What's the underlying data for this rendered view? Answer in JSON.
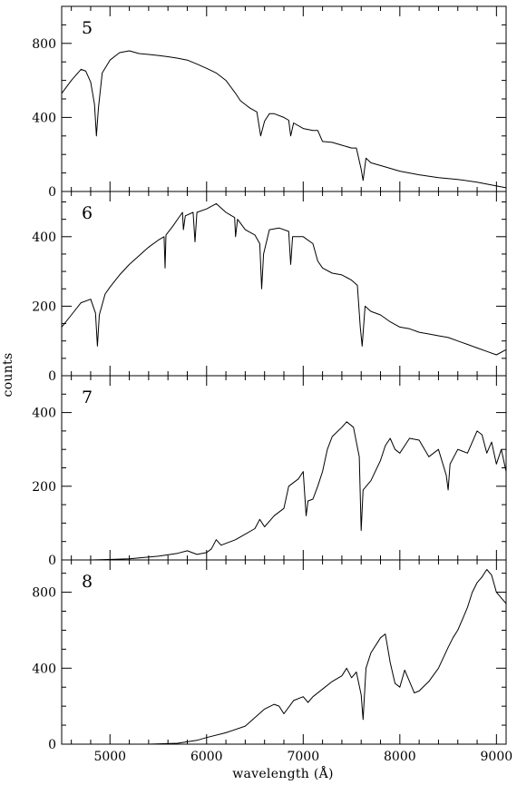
{
  "chart_data": {
    "type": "line",
    "xlabel": "wavelength (Å)",
    "ylabel": "counts",
    "xlim": [
      4500,
      9100
    ],
    "x_ticks": [
      5000,
      6000,
      7000,
      8000,
      9000
    ],
    "x_tick_labels": [
      "5000",
      "6000",
      "7000",
      "8000",
      "9000"
    ],
    "grid": false,
    "panels": [
      {
        "label": "5",
        "ylim": [
          0,
          1000
        ],
        "y_ticks": [
          0,
          400,
          800
        ],
        "y_tick_labels": [
          "0",
          "400",
          "800"
        ],
        "points": [
          [
            4500,
            530
          ],
          [
            4600,
            600
          ],
          [
            4700,
            660
          ],
          [
            4750,
            650
          ],
          [
            4800,
            590
          ],
          [
            4840,
            470
          ],
          [
            4860,
            300
          ],
          [
            4880,
            450
          ],
          [
            4920,
            640
          ],
          [
            5000,
            710
          ],
          [
            5100,
            750
          ],
          [
            5200,
            760
          ],
          [
            5300,
            745
          ],
          [
            5400,
            740
          ],
          [
            5500,
            735
          ],
          [
            5600,
            728
          ],
          [
            5700,
            720
          ],
          [
            5800,
            710
          ],
          [
            5900,
            688
          ],
          [
            6000,
            665
          ],
          [
            6100,
            640
          ],
          [
            6200,
            600
          ],
          [
            6300,
            530
          ],
          [
            6350,
            490
          ],
          [
            6400,
            470
          ],
          [
            6450,
            450
          ],
          [
            6520,
            430
          ],
          [
            6560,
            300
          ],
          [
            6600,
            380
          ],
          [
            6650,
            420
          ],
          [
            6700,
            420
          ],
          [
            6800,
            400
          ],
          [
            6850,
            385
          ],
          [
            6870,
            300
          ],
          [
            6900,
            370
          ],
          [
            7000,
            340
          ],
          [
            7100,
            330
          ],
          [
            7150,
            330
          ],
          [
            7200,
            270
          ],
          [
            7300,
            265
          ],
          [
            7400,
            250
          ],
          [
            7500,
            235
          ],
          [
            7550,
            235
          ],
          [
            7600,
            120
          ],
          [
            7620,
            60
          ],
          [
            7650,
            180
          ],
          [
            7700,
            155
          ],
          [
            7800,
            140
          ],
          [
            7900,
            125
          ],
          [
            8000,
            110
          ],
          [
            8200,
            90
          ],
          [
            8400,
            75
          ],
          [
            8600,
            65
          ],
          [
            8800,
            50
          ],
          [
            9000,
            30
          ],
          [
            9100,
            20
          ]
        ]
      },
      {
        "label": "6",
        "ylim": [
          0,
          530
        ],
        "y_ticks": [
          0,
          200,
          400
        ],
        "y_tick_labels": [
          "0",
          "200",
          "400"
        ],
        "points": [
          [
            4500,
            140
          ],
          [
            4600,
            175
          ],
          [
            4700,
            210
          ],
          [
            4800,
            220
          ],
          [
            4850,
            180
          ],
          [
            4870,
            85
          ],
          [
            4890,
            175
          ],
          [
            4950,
            235
          ],
          [
            5000,
            255
          ],
          [
            5100,
            290
          ],
          [
            5200,
            320
          ],
          [
            5300,
            345
          ],
          [
            5400,
            370
          ],
          [
            5500,
            390
          ],
          [
            5560,
            400
          ],
          [
            5570,
            310
          ],
          [
            5580,
            405
          ],
          [
            5650,
            430
          ],
          [
            5700,
            450
          ],
          [
            5750,
            470
          ],
          [
            5760,
            420
          ],
          [
            5780,
            460
          ],
          [
            5860,
            470
          ],
          [
            5880,
            385
          ],
          [
            5900,
            470
          ],
          [
            6000,
            480
          ],
          [
            6100,
            495
          ],
          [
            6200,
            470
          ],
          [
            6290,
            455
          ],
          [
            6300,
            400
          ],
          [
            6320,
            450
          ],
          [
            6400,
            420
          ],
          [
            6500,
            405
          ],
          [
            6550,
            380
          ],
          [
            6570,
            250
          ],
          [
            6590,
            350
          ],
          [
            6650,
            420
          ],
          [
            6750,
            425
          ],
          [
            6850,
            415
          ],
          [
            6870,
            320
          ],
          [
            6890,
            400
          ],
          [
            7000,
            400
          ],
          [
            7100,
            380
          ],
          [
            7150,
            330
          ],
          [
            7200,
            310
          ],
          [
            7300,
            295
          ],
          [
            7400,
            290
          ],
          [
            7500,
            275
          ],
          [
            7560,
            260
          ],
          [
            7590,
            140
          ],
          [
            7610,
            85
          ],
          [
            7640,
            200
          ],
          [
            7700,
            185
          ],
          [
            7800,
            175
          ],
          [
            7900,
            155
          ],
          [
            8000,
            140
          ],
          [
            8100,
            135
          ],
          [
            8200,
            125
          ],
          [
            8300,
            120
          ],
          [
            8400,
            115
          ],
          [
            8500,
            110
          ],
          [
            8600,
            100
          ],
          [
            8700,
            90
          ],
          [
            8800,
            80
          ],
          [
            8900,
            70
          ],
          [
            9000,
            60
          ],
          [
            9100,
            75
          ]
        ]
      },
      {
        "label": "7",
        "ylim": [
          0,
          500
        ],
        "y_ticks": [
          0,
          200,
          400
        ],
        "y_tick_labels": [
          "0",
          "200",
          "400"
        ],
        "points": [
          [
            4800,
            0
          ],
          [
            5200,
            3
          ],
          [
            5500,
            10
          ],
          [
            5700,
            18
          ],
          [
            5800,
            25
          ],
          [
            5900,
            15
          ],
          [
            6000,
            20
          ],
          [
            6050,
            30
          ],
          [
            6100,
            55
          ],
          [
            6150,
            40
          ],
          [
            6200,
            45
          ],
          [
            6300,
            55
          ],
          [
            6400,
            70
          ],
          [
            6500,
            85
          ],
          [
            6550,
            110
          ],
          [
            6600,
            90
          ],
          [
            6700,
            120
          ],
          [
            6800,
            140
          ],
          [
            6850,
            200
          ],
          [
            6950,
            220
          ],
          [
            7000,
            240
          ],
          [
            7030,
            120
          ],
          [
            7050,
            160
          ],
          [
            7100,
            165
          ],
          [
            7150,
            200
          ],
          [
            7200,
            240
          ],
          [
            7250,
            300
          ],
          [
            7300,
            335
          ],
          [
            7400,
            360
          ],
          [
            7450,
            375
          ],
          [
            7520,
            360
          ],
          [
            7580,
            280
          ],
          [
            7600,
            80
          ],
          [
            7620,
            190
          ],
          [
            7700,
            215
          ],
          [
            7800,
            270
          ],
          [
            7850,
            310
          ],
          [
            7900,
            330
          ],
          [
            7950,
            300
          ],
          [
            8000,
            290
          ],
          [
            8050,
            310
          ],
          [
            8100,
            330
          ],
          [
            8200,
            325
          ],
          [
            8300,
            280
          ],
          [
            8400,
            300
          ],
          [
            8480,
            230
          ],
          [
            8500,
            190
          ],
          [
            8520,
            260
          ],
          [
            8600,
            300
          ],
          [
            8700,
            290
          ],
          [
            8800,
            350
          ],
          [
            8850,
            340
          ],
          [
            8900,
            290
          ],
          [
            8950,
            320
          ],
          [
            9000,
            260
          ],
          [
            9050,
            300
          ],
          [
            9100,
            240
          ]
        ]
      },
      {
        "label": "8",
        "ylim": [
          0,
          970
        ],
        "y_ticks": [
          0,
          400,
          800
        ],
        "y_tick_labels": [
          "0",
          "400",
          "800"
        ],
        "points": [
          [
            5400,
            0
          ],
          [
            5700,
            5
          ],
          [
            5900,
            20
          ],
          [
            6000,
            35
          ],
          [
            6200,
            60
          ],
          [
            6400,
            95
          ],
          [
            6500,
            140
          ],
          [
            6600,
            185
          ],
          [
            6700,
            210
          ],
          [
            6750,
            200
          ],
          [
            6800,
            160
          ],
          [
            6900,
            230
          ],
          [
            7000,
            250
          ],
          [
            7050,
            220
          ],
          [
            7100,
            250
          ],
          [
            7200,
            290
          ],
          [
            7300,
            330
          ],
          [
            7400,
            360
          ],
          [
            7450,
            400
          ],
          [
            7500,
            350
          ],
          [
            7550,
            380
          ],
          [
            7600,
            260
          ],
          [
            7620,
            130
          ],
          [
            7650,
            400
          ],
          [
            7700,
            480
          ],
          [
            7800,
            560
          ],
          [
            7850,
            580
          ],
          [
            7870,
            520
          ],
          [
            7900,
            430
          ],
          [
            7950,
            320
          ],
          [
            8000,
            300
          ],
          [
            8050,
            390
          ],
          [
            8100,
            330
          ],
          [
            8150,
            270
          ],
          [
            8200,
            280
          ],
          [
            8300,
            330
          ],
          [
            8400,
            400
          ],
          [
            8500,
            510
          ],
          [
            8550,
            560
          ],
          [
            8600,
            600
          ],
          [
            8650,
            660
          ],
          [
            8700,
            720
          ],
          [
            8750,
            800
          ],
          [
            8800,
            850
          ],
          [
            8850,
            880
          ],
          [
            8900,
            920
          ],
          [
            8950,
            890
          ],
          [
            9000,
            800
          ],
          [
            9050,
            770
          ],
          [
            9100,
            740
          ]
        ]
      }
    ]
  }
}
